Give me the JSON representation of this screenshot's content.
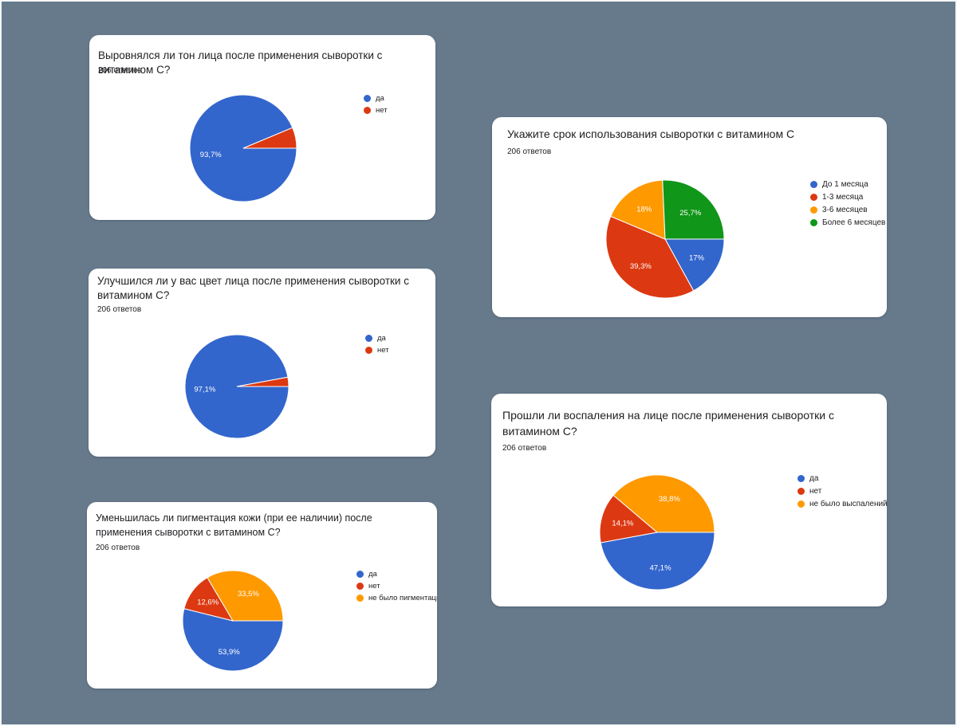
{
  "chart_data": [
    {
      "type": "pie",
      "title": "Выровнялся ли тон лица после применения сыворотки с витамином С?",
      "subtitle": "206 ответов",
      "categories": [
        "да",
        "нет"
      ],
      "values": [
        93.7,
        6.3
      ],
      "labels": [
        "93,7%",
        ""
      ],
      "colors": [
        "#3366cc",
        "#dc3912"
      ],
      "legend": "right"
    },
    {
      "type": "pie",
      "title": "Улучшился ли у вас цвет лица после применения сыворотки с витамином С?",
      "subtitle": "206 ответов",
      "categories": [
        "да",
        "нет"
      ],
      "values": [
        97.1,
        2.9
      ],
      "labels": [
        "97,1%",
        ""
      ],
      "colors": [
        "#3366cc",
        "#dc3912"
      ],
      "legend": "right"
    },
    {
      "type": "pie",
      "title": "Уменьшилась ли пигментация кожи (при ее наличии) после применения сыворотки с витамином С?",
      "subtitle": "206 ответов",
      "categories": [
        "да",
        "нет",
        "не было пигментации"
      ],
      "values": [
        53.9,
        12.6,
        33.5
      ],
      "labels": [
        "53,9%",
        "12,6%",
        "33,5%"
      ],
      "colors": [
        "#3366cc",
        "#dc3912",
        "#ff9900"
      ],
      "legend": "right"
    },
    {
      "type": "pie",
      "title": "Укажите срок использования сыворотки с витамином С",
      "subtitle": "206 ответов",
      "categories": [
        "До 1 месяца",
        "1-3 месяца",
        "3-6 месяцев",
        "Более 6 месяцев"
      ],
      "values": [
        17,
        39.3,
        18,
        25.7
      ],
      "labels": [
        "17%",
        "39,3%",
        "18%",
        "25,7%"
      ],
      "colors": [
        "#3366cc",
        "#dc3912",
        "#ff9900",
        "#109618"
      ],
      "legend": "right"
    },
    {
      "type": "pie",
      "title": "Прошли ли воспаления на лице после применения сыворотки с витамином С?",
      "subtitle": "206 ответов",
      "categories": [
        "да",
        "нет",
        "не было выспалений"
      ],
      "values": [
        47.1,
        14.1,
        38.8
      ],
      "labels": [
        "47,1%",
        "14,1%",
        "38,8%"
      ],
      "colors": [
        "#3366cc",
        "#dc3912",
        "#ff9900"
      ],
      "legend": "right"
    }
  ]
}
